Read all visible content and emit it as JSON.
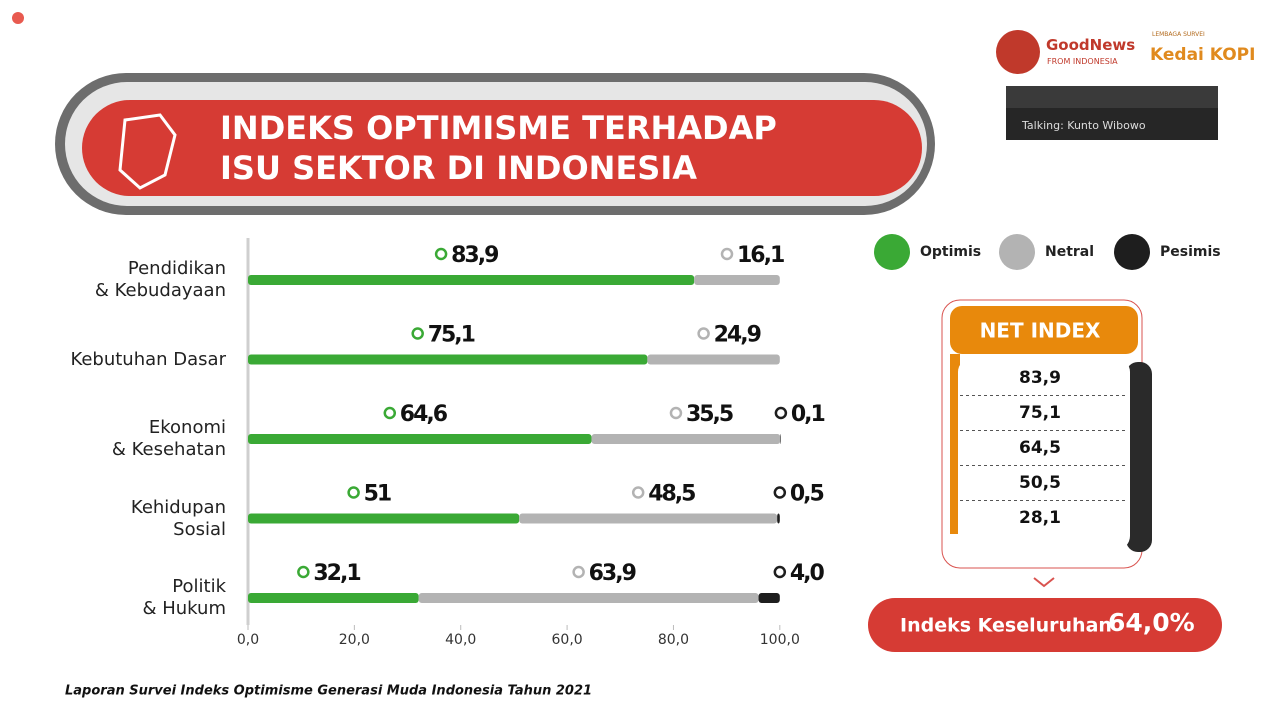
{
  "header": {
    "title_lines": [
      "INDEKS OPTIMISME TERHADAP",
      "ISU SEKTOR DI INDONESIA"
    ]
  },
  "logos": {
    "goodnews": "GoodNews",
    "goodnews_sub": "FROM INDONESIA",
    "kedai_top": "LEMBAGA SURVEI",
    "kedai": "Kedai KOPI"
  },
  "call_panel": {
    "talking": "Talking: Kunto Wibowo"
  },
  "chart_data": {
    "type": "stacked-bar-horizontal",
    "categories": [
      "Pendidikan\n& Kebudayaan",
      "Kebutuhan Dasar",
      "Ekonomi\n& Kesehatan",
      "Kehidupan\nSosial",
      "Politik\n& Hukum"
    ],
    "series": [
      {
        "name": "Optimis",
        "color": "#3aa935",
        "values": [
          83.9,
          75.1,
          64.6,
          51,
          32.1
        ],
        "value_labels": [
          "83,9",
          "75,1",
          "64,6",
          "51",
          "32,1"
        ]
      },
      {
        "name": "Netral",
        "color": "#b3b3b3",
        "values": [
          16.1,
          24.9,
          35.5,
          48.5,
          63.9
        ],
        "value_labels": [
          "16,1",
          "24,9",
          "35,5",
          "48,5",
          "63,9"
        ]
      },
      {
        "name": "Pesimis",
        "color": "#1e1e1e",
        "values": [
          null,
          null,
          0.1,
          0.5,
          4.0
        ],
        "value_labels": [
          null,
          null,
          "0,1",
          "0,5",
          "4,0"
        ]
      }
    ],
    "xlim": [
      0,
      110
    ],
    "xticks": [
      {
        "value": 0,
        "label": "0,0"
      },
      {
        "value": 20,
        "label": "20,0"
      },
      {
        "value": 40,
        "label": "40,0"
      },
      {
        "value": 60,
        "label": "60,0"
      },
      {
        "value": 80,
        "label": "80,0"
      },
      {
        "value": 100,
        "label": "100,0"
      }
    ],
    "legend": "top-right"
  },
  "net_index": {
    "title": "NET INDEX",
    "rows": [
      "83,9",
      "75,1",
      "64,5",
      "50,5",
      "28,1"
    ]
  },
  "overall": {
    "label": "Indeks Keseluruhan",
    "value": "64,0%"
  },
  "footer": "Laporan Survei Indeks Optimisme Generasi Muda Indonesia Tahun 2021"
}
